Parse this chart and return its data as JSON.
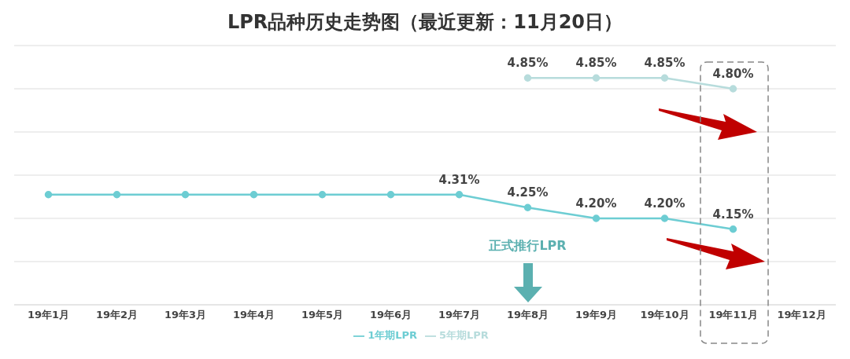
{
  "chart_data": {
    "type": "line",
    "title": "LPR品种历史走势图（最近更新：11月20日）",
    "categories": [
      "19年1月",
      "19年2月",
      "19年3月",
      "19年4月",
      "19年5月",
      "19年6月",
      "19年7月",
      "19年8月",
      "19年9月",
      "19年10月",
      "19年11月",
      "19年12月"
    ],
    "series": [
      {
        "name": "1年期LPR",
        "color": "#6dcdd3",
        "values": [
          4.31,
          4.31,
          4.31,
          4.31,
          4.31,
          4.31,
          4.31,
          4.25,
          4.2,
          4.2,
          4.15,
          null
        ],
        "value_labels": [
          null,
          null,
          null,
          null,
          null,
          null,
          "4.31%",
          "4.25%",
          "4.20%",
          "4.20%",
          "4.15%",
          null
        ]
      },
      {
        "name": "5年期LPR",
        "color": "#b7dcdc",
        "values": [
          null,
          null,
          null,
          null,
          null,
          null,
          null,
          4.85,
          4.85,
          4.85,
          4.8,
          null
        ],
        "value_labels": [
          null,
          null,
          null,
          null,
          null,
          null,
          null,
          "4.85%",
          "4.85%",
          "4.85%",
          "4.80%",
          null
        ]
      }
    ],
    "ylim": [
      3.8,
      5.0
    ],
    "tick_labels": "x",
    "grid": "y",
    "legend": "bottom",
    "marker": "circle",
    "line_style": "solid",
    "annotations": [
      "正式推行LPR"
    ]
  }
}
